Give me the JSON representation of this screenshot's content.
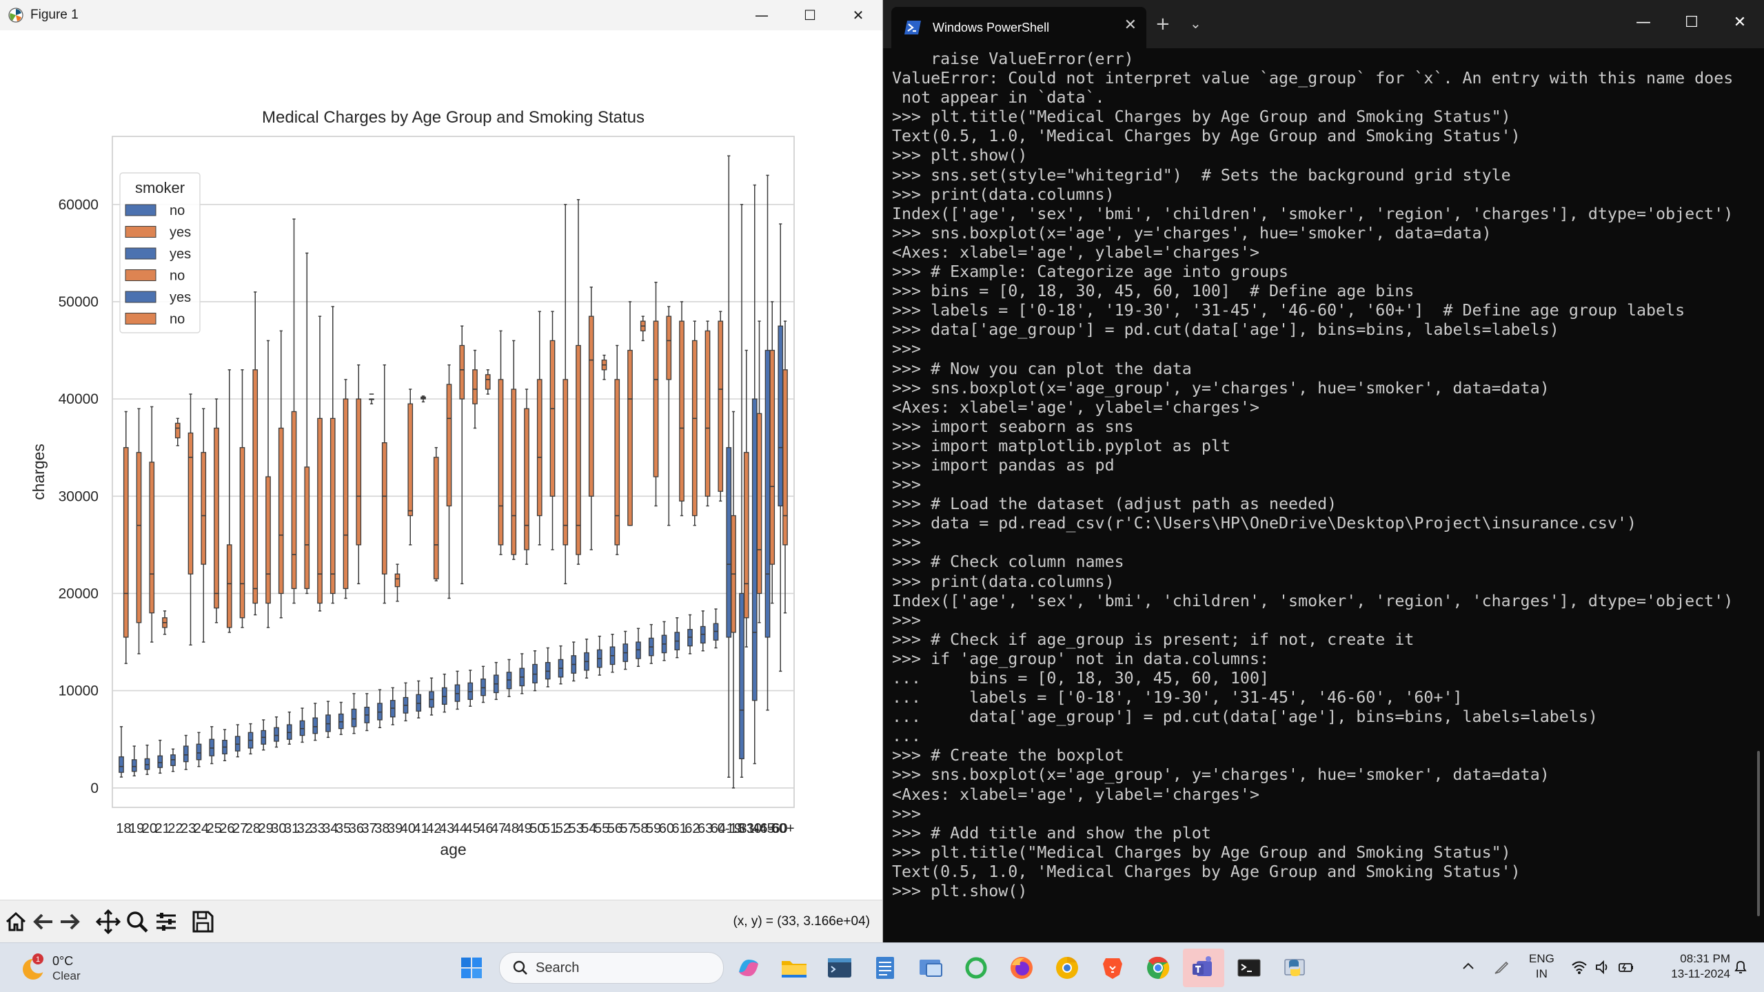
{
  "figure_window": {
    "title": "Figure 1",
    "minimize_icon": "minimize-icon",
    "maximize_icon": "maximize-icon",
    "close_icon": "close-icon",
    "coords_readout": "(x, y) = (33, 3.166e+04)"
  },
  "toolbar": {
    "icons": [
      "home-icon",
      "back-icon",
      "forward-icon",
      "pan-icon",
      "zoom-icon",
      "configure-icon",
      "save-icon"
    ]
  },
  "chart_data": {
    "type": "box",
    "title": "Medical Charges by Age Group and Smoking Status",
    "xlabel": "age",
    "ylabel": "charges",
    "ylim": [
      -2000,
      67000
    ],
    "yticks": [
      0,
      10000,
      20000,
      30000,
      40000,
      50000,
      60000
    ],
    "x_tick_labels": [
      "18",
      "19",
      "20",
      "21",
      "22",
      "23",
      "24",
      "25",
      "26",
      "27",
      "28",
      "29",
      "30",
      "31",
      "32",
      "33",
      "34",
      "35",
      "36",
      "37",
      "38",
      "39",
      "40",
      "41",
      "42",
      "43",
      "44",
      "45",
      "46",
      "47",
      "48",
      "49",
      "50",
      "51",
      "52",
      "53",
      "54",
      "55",
      "56",
      "57",
      "58",
      "59",
      "60",
      "61",
      "62",
      "63",
      "64",
      "0-18",
      "19-30",
      "31-45",
      "46-60",
      "60+"
    ],
    "grid": "horizontal",
    "legend": {
      "title": "smoker",
      "position": "upper-left",
      "entries": [
        {
          "label": "no",
          "color": "#4c72b0"
        },
        {
          "label": "yes",
          "color": "#dd8452"
        },
        {
          "label": "yes",
          "color": "#4c72b0"
        },
        {
          "label": "no",
          "color": "#dd8452"
        },
        {
          "label": "yes",
          "color": "#4c72b0"
        },
        {
          "label": "no",
          "color": "#dd8452"
        }
      ]
    },
    "colors": {
      "blue": "#4c72b0",
      "orange": "#dd8452"
    },
    "series": [
      {
        "name": "no",
        "color": "#4c72b0",
        "boxes": [
          [
            1120,
            1600,
            2200,
            3200,
            6300
          ],
          [
            1240,
            1700,
            2200,
            2900,
            4300
          ],
          [
            1390,
            1900,
            2400,
            3000,
            4400
          ],
          [
            1520,
            2100,
            2600,
            3300,
            4900
          ],
          [
            1700,
            2300,
            2900,
            3400,
            4000
          ],
          [
            1900,
            2700,
            3400,
            4300,
            5400
          ],
          [
            2200,
            2900,
            3600,
            4500,
            5700
          ],
          [
            2500,
            3300,
            4100,
            5000,
            6300
          ],
          [
            2800,
            3500,
            4200,
            4900,
            6000
          ],
          [
            3200,
            3800,
            4500,
            5300,
            6500
          ],
          [
            3500,
            4100,
            4900,
            5700,
            6600
          ],
          [
            3900,
            4500,
            5200,
            5900,
            7000
          ],
          [
            4200,
            4800,
            5400,
            6200,
            7300
          ],
          [
            4500,
            5000,
            5700,
            6500,
            7800
          ],
          [
            4700,
            5400,
            6100,
            6900,
            8200
          ],
          [
            4900,
            5600,
            6300,
            7200,
            8700
          ],
          [
            5200,
            5800,
            6600,
            7500,
            8900
          ],
          [
            5500,
            6100,
            6800,
            7600,
            8800
          ],
          [
            5600,
            6300,
            7100,
            8100,
            9700
          ],
          [
            5900,
            6700,
            7500,
            8300,
            9700
          ],
          [
            6200,
            7000,
            7800,
            8700,
            10100
          ],
          [
            6500,
            7300,
            8200,
            9000,
            10300
          ],
          [
            6900,
            7700,
            8500,
            9300,
            10800
          ],
          [
            7200,
            7900,
            8700,
            9600,
            11000
          ],
          [
            7500,
            8300,
            9100,
            9900,
            11300
          ],
          [
            7800,
            8600,
            9400,
            10300,
            11700
          ],
          [
            8100,
            8900,
            9700,
            10600,
            12000
          ],
          [
            8400,
            9100,
            9900,
            10800,
            12100
          ],
          [
            8800,
            9500,
            10300,
            11200,
            12500
          ],
          [
            9100,
            9800,
            10700,
            11600,
            12900
          ],
          [
            9400,
            10200,
            11100,
            11900,
            13200
          ],
          [
            9700,
            10500,
            11400,
            12300,
            13800
          ],
          [
            10000,
            10800,
            11700,
            12700,
            14100
          ],
          [
            10400,
            11200,
            12000,
            12900,
            14400
          ],
          [
            10700,
            11400,
            12300,
            13200,
            14600
          ],
          [
            11000,
            11800,
            12700,
            13600,
            15000
          ],
          [
            11300,
            12100,
            13000,
            13900,
            15300
          ],
          [
            11600,
            12400,
            13300,
            14200,
            15600
          ],
          [
            11900,
            12700,
            13600,
            14500,
            15800
          ],
          [
            12200,
            13000,
            13900,
            14800,
            16100
          ],
          [
            12500,
            13300,
            14200,
            15000,
            16400
          ],
          [
            12800,
            13600,
            14500,
            15400,
            16800
          ],
          [
            13100,
            13900,
            14800,
            15700,
            17100
          ],
          [
            13400,
            14200,
            15100,
            16000,
            17500
          ],
          [
            13800,
            14600,
            15500,
            16300,
            17800
          ],
          [
            14100,
            14900,
            15800,
            16600,
            18200
          ],
          [
            14400,
            15200,
            16100,
            16900,
            18400
          ],
          [
            1100,
            15500,
            23000,
            35000,
            65000
          ],
          [
            1100,
            3000,
            8000,
            20000,
            60000
          ],
          [
            2500,
            9000,
            16000,
            40000,
            62000
          ],
          [
            8000,
            15500,
            22000,
            45000,
            63000
          ],
          [
            12000,
            29000,
            35000,
            47500,
            58000
          ]
        ]
      },
      {
        "name": "yes",
        "color": "#dd8452",
        "boxes": [
          [
            12800,
            15500,
            20000,
            35000,
            38700
          ],
          [
            13800,
            17000,
            27000,
            34500,
            39000
          ],
          [
            15000,
            18000,
            22000,
            33500,
            39200
          ],
          [
            15800,
            16500,
            17000,
            17500,
            18200
          ],
          [
            35200,
            36000,
            37000,
            37500,
            38000
          ],
          [
            14700,
            22000,
            34000,
            36500,
            40500
          ],
          [
            15000,
            23000,
            28000,
            34500,
            39000
          ],
          [
            17000,
            18500,
            20000,
            37000,
            40000
          ],
          [
            16000,
            16500,
            21000,
            25000,
            43000
          ],
          [
            16500,
            17500,
            21000,
            35000,
            43000
          ],
          [
            17800,
            19000,
            20500,
            43000,
            51000
          ],
          [
            16500,
            19000,
            22000,
            32000,
            46000
          ],
          [
            17500,
            20000,
            26000,
            37000,
            47000
          ],
          [
            19000,
            20500,
            24000,
            38700,
            58500
          ],
          [
            20000,
            20500,
            25000,
            33000,
            55000
          ],
          [
            18200,
            19000,
            22000,
            38000,
            48500
          ],
          [
            19000,
            20000,
            22000,
            38000,
            49500
          ],
          [
            19500,
            20500,
            26000,
            40000,
            42000
          ],
          [
            21000,
            25000,
            30000,
            40000,
            43500
          ],
          [
            39500,
            40000,
            40500,
            40000,
            40000
          ],
          [
            19000,
            22000,
            30000,
            35500,
            43500
          ],
          [
            19200,
            20700,
            21500,
            22000,
            23000
          ],
          [
            25000,
            28000,
            28500,
            39500,
            41000
          ],
          [
            39700,
            40000,
            40100,
            40200,
            40300
          ],
          [
            21300,
            21500,
            25000,
            34000,
            35000
          ],
          [
            19500,
            29000,
            38000,
            41500,
            43500
          ],
          [
            21000,
            40000,
            43000,
            45500,
            47500
          ],
          [
            37000,
            39500,
            41000,
            43000,
            45000
          ],
          [
            40500,
            41000,
            42000,
            42500,
            43000
          ],
          [
            24000,
            25000,
            29000,
            42000,
            47000
          ],
          [
            23500,
            24000,
            28000,
            41000,
            46000
          ],
          [
            23000,
            24500,
            27000,
            39000,
            41000
          ],
          [
            25000,
            28000,
            34000,
            42000,
            49000
          ],
          [
            24500,
            30000,
            39000,
            46000,
            49000
          ],
          [
            21000,
            25000,
            27000,
            42000,
            60000
          ],
          [
            23000,
            24000,
            27000,
            45500,
            60500
          ],
          [
            24500,
            30000,
            44000,
            48500,
            51500
          ],
          [
            42000,
            43000,
            43500,
            44000,
            44500
          ],
          [
            24000,
            25000,
            28000,
            42000,
            45500
          ],
          [
            27000,
            27000,
            40000,
            45000,
            50000
          ],
          [
            46000,
            47000,
            47500,
            48000,
            48500
          ],
          [
            29000,
            32000,
            42000,
            48000,
            52000
          ],
          [
            27000,
            42000,
            46000,
            48500,
            49500
          ],
          [
            28000,
            29500,
            37000,
            48000,
            50000
          ],
          [
            27000,
            28000,
            38000,
            46000,
            48000
          ],
          [
            29000,
            30000,
            37000,
            47000,
            48000
          ],
          [
            29500,
            30500,
            41000,
            48000,
            49000
          ],
          [
            0,
            16000,
            22000,
            28000,
            38700
          ],
          [
            14500,
            17500,
            21000,
            34500,
            45000
          ],
          [
            17000,
            20000,
            24500,
            38500,
            48000
          ],
          [
            19000,
            23000,
            31000,
            45000,
            50000
          ],
          [
            18000,
            25000,
            28000,
            43000,
            48000
          ]
        ]
      }
    ]
  },
  "terminal": {
    "tab_title": "Windows PowerShell",
    "tab_icon": "powershell-icon",
    "new_tab_icon": "plus-icon",
    "dropdown_icon": "chevron-down-icon",
    "lines": [
      "    raise ValueError(err)",
      "ValueError: Could not interpret value `age_group` for `x`. An entry with this name does",
      " not appear in `data`.",
      ">>> plt.title(\"Medical Charges by Age Group and Smoking Status\")",
      "Text(0.5, 1.0, 'Medical Charges by Age Group and Smoking Status')",
      ">>> plt.show()",
      ">>> sns.set(style=\"whitegrid\")  # Sets the background grid style",
      ">>> print(data.columns)",
      "Index(['age', 'sex', 'bmi', 'children', 'smoker', 'region', 'charges'], dtype='object')",
      ">>> sns.boxplot(x='age', y='charges', hue='smoker', data=data)",
      "<Axes: xlabel='age', ylabel='charges'>",
      ">>> # Example: Categorize age into groups",
      ">>> bins = [0, 18, 30, 45, 60, 100]  # Define age bins",
      ">>> labels = ['0-18', '19-30', '31-45', '46-60', '60+']  # Define age group labels",
      ">>> data['age_group'] = pd.cut(data['age'], bins=bins, labels=labels)",
      ">>>",
      ">>> # Now you can plot the data",
      ">>> sns.boxplot(x='age_group', y='charges', hue='smoker', data=data)",
      "<Axes: xlabel='age', ylabel='charges'>",
      ">>> import seaborn as sns",
      ">>> import matplotlib.pyplot as plt",
      ">>> import pandas as pd",
      ">>>",
      ">>> # Load the dataset (adjust path as needed)",
      ">>> data = pd.read_csv(r'C:\\Users\\HP\\OneDrive\\Desktop\\Project\\insurance.csv')",
      ">>>",
      ">>> # Check column names",
      ">>> print(data.columns)",
      "Index(['age', 'sex', 'bmi', 'children', 'smoker', 'region', 'charges'], dtype='object')",
      ">>>",
      ">>> # Check if age_group is present; if not, create it",
      ">>> if 'age_group' not in data.columns:",
      "...     bins = [0, 18, 30, 45, 60, 100]",
      "...     labels = ['0-18', '19-30', '31-45', '46-60', '60+']",
      "...     data['age_group'] = pd.cut(data['age'], bins=bins, labels=labels)",
      "...",
      ">>> # Create the boxplot",
      ">>> sns.boxplot(x='age_group', y='charges', hue='smoker', data=data)",
      "<Axes: xlabel='age', ylabel='charges'>",
      ">>>",
      ">>> # Add title and show the plot",
      ">>> plt.title(\"Medical Charges by Age Group and Smoking Status\")",
      "Text(0.5, 1.0, 'Medical Charges by Age Group and Smoking Status')",
      ">>> plt.show()"
    ]
  },
  "taskbar": {
    "weather_temp": "0°C",
    "weather_desc": "Clear",
    "weather_badge": "1",
    "search_placeholder": "Search",
    "apps": [
      "windows-start-icon",
      "copilot-icon",
      "file-explorer-icon",
      "terminal-preview-icon",
      "notepad-icon",
      "remote-desktop-icon",
      "refresh-app-icon",
      "firefox-icon",
      "chrome-canary-icon",
      "brave-icon",
      "chrome-icon",
      "teams-icon",
      "powershell-taskbar-icon",
      "python-icon"
    ],
    "lang_line1": "ENG",
    "lang_line2": "IN",
    "time": "08:31 PM",
    "date": "13-11-2024"
  }
}
